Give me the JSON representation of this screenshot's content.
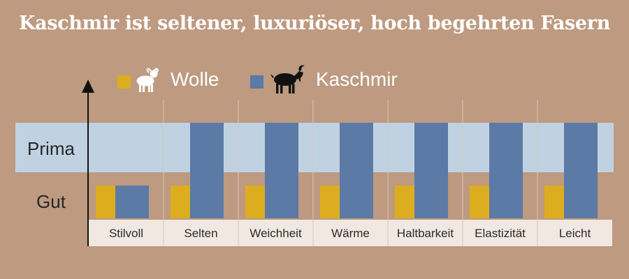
{
  "title": "Kaschmir ist seltener, luxuriöser, hoch begehrten Fasern",
  "legend": {
    "wolle": {
      "label": "Wolle",
      "icon": "sheep-icon"
    },
    "kaschmir": {
      "label": "Kaschmir",
      "icon": "goat-icon"
    }
  },
  "levels": {
    "high": "Prima",
    "low": "Gut"
  },
  "colors": {
    "background": "#bd9a80",
    "wolle": "#ddad20",
    "kaschmir": "#5b7aa5",
    "prima_band": "#c0d2e2",
    "label_band": "#f1e8e2"
  },
  "chart_data": {
    "type": "bar",
    "title": "Kaschmir ist seltener, luxuriöser, hoch begehrten Fasern",
    "categories": [
      "Stilvoll",
      "Selten",
      "Weichheit",
      "Wärme",
      "Haltbarkeit",
      "Elastizität",
      "Leicht"
    ],
    "y_scale": "ordinal",
    "y_levels": [
      "Gut",
      "Prima"
    ],
    "series": [
      {
        "name": "Wolle",
        "values": [
          "Gut",
          "Gut",
          "Gut",
          "Gut",
          "Gut",
          "Gut",
          "Gut"
        ]
      },
      {
        "name": "Kaschmir",
        "values": [
          "Gut",
          "Prima",
          "Prima",
          "Prima",
          "Prima",
          "Prima",
          "Prima"
        ]
      }
    ],
    "legend_position": "top",
    "grid": false
  }
}
